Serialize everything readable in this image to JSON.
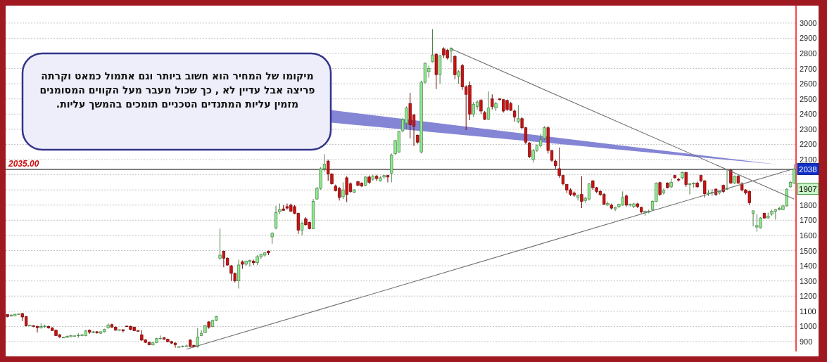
{
  "chart_data": {
    "type": "candlestick",
    "categories": [
      null,
      null,
      null,
      null,
      null,
      null,
      null,
      null,
      null,
      null,
      null,
      null,
      null,
      null,
      null,
      null,
      null,
      null,
      null,
      null,
      null,
      null,
      null,
      null,
      null,
      null,
      null,
      null,
      null,
      null,
      null,
      null,
      null,
      null,
      null,
      null,
      null,
      null,
      null,
      null,
      null,
      null,
      null,
      null,
      null,
      null,
      null,
      null,
      null,
      null,
      null,
      null,
      null,
      null,
      null,
      null,
      null,
      null,
      null,
      null,
      null,
      null,
      null,
      null,
      null,
      null,
      null,
      null,
      null,
      null,
      null,
      null,
      null,
      null,
      null,
      null,
      null,
      null,
      null,
      null,
      null,
      null,
      null,
      null,
      null,
      null,
      null,
      null,
      null,
      null,
      null,
      null,
      null,
      null,
      null,
      null,
      null,
      null,
      null,
      null,
      null,
      null,
      null,
      null,
      null,
      null,
      null,
      null,
      null,
      null,
      null,
      null,
      null,
      null,
      null,
      null,
      null,
      null,
      null,
      null,
      null,
      null,
      null,
      null,
      null,
      null,
      null,
      null,
      null,
      null,
      null,
      null,
      null,
      null,
      null,
      null,
      null,
      null,
      null,
      null,
      null,
      null,
      null,
      null,
      null,
      null,
      null,
      null,
      null,
      null,
      null,
      null,
      null,
      null,
      null,
      null,
      null,
      null,
      null,
      null,
      null,
      null,
      null,
      null,
      null,
      null,
      null,
      null,
      null,
      null,
      null,
      null,
      null,
      null,
      null,
      null,
      null,
      null,
      null,
      null,
      null,
      null,
      null,
      null,
      null,
      null,
      null,
      null,
      null,
      null,
      null,
      null,
      null,
      null,
      null,
      null,
      null,
      null,
      null,
      null,
      null,
      null,
      null,
      null,
      null,
      null,
      null,
      null,
      null,
      null,
      null,
      null
    ],
    "ohlc": [
      [
        1078,
        1080,
        1060,
        1065
      ],
      [
        1068,
        1080,
        1065,
        1075
      ],
      [
        1070,
        1085,
        1068,
        1080
      ],
      [
        1082,
        1085,
        1080,
        1082
      ],
      [
        1085,
        1090,
        1035,
        1062
      ],
      [
        1065,
        1070,
        1000,
        1005
      ],
      [
        1008,
        1010,
        1005,
        1008
      ],
      [
        1005,
        1008,
        995,
        1000
      ],
      [
        1000,
        1005,
        960,
        992
      ],
      [
        992,
        1020,
        985,
        1000
      ],
      [
        1000,
        1012,
        990,
        1002
      ],
      [
        1000,
        1005,
        985,
        990
      ],
      [
        990,
        995,
        970,
        973
      ],
      [
        975,
        980,
        938,
        940
      ],
      [
        945,
        950,
        925,
        930
      ],
      [
        928,
        932,
        925,
        928
      ],
      [
        928,
        940,
        925,
        935
      ],
      [
        932,
        945,
        930,
        940
      ],
      [
        938,
        940,
        936,
        938
      ],
      [
        940,
        955,
        925,
        942
      ],
      [
        940,
        950,
        935,
        945
      ],
      [
        940,
        978,
        935,
        970
      ],
      [
        975,
        980,
        950,
        962
      ],
      [
        960,
        970,
        955,
        965
      ],
      [
        965,
        970,
        952,
        958
      ],
      [
        955,
        968,
        950,
        965
      ],
      [
        965,
        985,
        960,
        980
      ],
      [
        990,
        1020,
        985,
        1010
      ],
      [
        1012,
        1018,
        990,
        995
      ],
      [
        995,
        1000,
        972,
        975
      ],
      [
        975,
        980,
        972,
        978
      ],
      [
        978,
        982,
        960,
        972
      ],
      [
        1002,
        1005,
        998,
        1000
      ],
      [
        1000,
        1005,
        975,
        980
      ],
      [
        995,
        998,
        970,
        972
      ],
      [
        972,
        975,
        965,
        968
      ],
      [
        945,
        975,
        905,
        910
      ],
      [
        912,
        915,
        890,
        895
      ],
      [
        895,
        900,
        875,
        880
      ],
      [
        878,
        895,
        875,
        892
      ],
      [
        893,
        925,
        890,
        920
      ],
      [
        920,
        940,
        915,
        922
      ],
      [
        925,
        930,
        912,
        915
      ],
      [
        915,
        920,
        895,
        900
      ],
      [
        900,
        905,
        885,
        890
      ],
      [
        890,
        895,
        860,
        880
      ],
      [
        866,
        870,
        862,
        866
      ],
      [
        866,
        875,
        862,
        870
      ],
      [
        872,
        880,
        868,
        872
      ],
      [
        910,
        915,
        862,
        868
      ],
      [
        875,
        880,
        860,
        865
      ],
      [
        866,
        988,
        860,
        930
      ],
      [
        940,
        975,
        935,
        955
      ],
      [
        960,
        1010,
        955,
        1005
      ],
      [
        1030,
        1035,
        985,
        995
      ],
      [
        1000,
        1045,
        995,
        1040
      ],
      [
        1040,
        1070,
        1035,
        1065
      ],
      [
        1450,
        1645,
        1440,
        1470
      ],
      [
        1495,
        1500,
        1390,
        1450
      ],
      [
        1450,
        1455,
        1400,
        1405
      ],
      [
        1400,
        1405,
        1300,
        1350
      ],
      [
        1350,
        1355,
        1290,
        1300
      ],
      [
        1300,
        1440,
        1250,
        1405
      ],
      [
        1425,
        1435,
        1380,
        1410
      ],
      [
        1410,
        1435,
        1400,
        1430
      ],
      [
        1425,
        1440,
        1395,
        1435
      ],
      [
        1430,
        1440,
        1405,
        1420
      ],
      [
        1420,
        1470,
        1405,
        1460
      ],
      [
        1460,
        1480,
        1445,
        1475
      ],
      [
        1470,
        1490,
        1460,
        1485
      ],
      [
        1495,
        1500,
        1470,
        1485
      ],
      [
        1590,
        1620,
        1545,
        1615
      ],
      [
        1650,
        1795,
        1640,
        1750
      ],
      [
        1755,
        1810,
        1740,
        1770
      ],
      [
        1775,
        1800,
        1765,
        1765
      ],
      [
        1790,
        1810,
        1770,
        1780
      ],
      [
        1800,
        1810,
        1755,
        1760
      ],
      [
        1790,
        1800,
        1740,
        1745
      ],
      [
        1745,
        1750,
        1610,
        1635
      ],
      [
        1635,
        1690,
        1600,
        1680
      ],
      [
        1710,
        1720,
        1665,
        1670
      ],
      [
        1685,
        1690,
        1640,
        1645
      ],
      [
        1645,
        1840,
        1640,
        1825
      ],
      [
        1840,
        1920,
        1835,
        1910
      ],
      [
        1910,
        2050,
        1900,
        2040
      ],
      [
        2040,
        2135,
        2020,
        2070
      ],
      [
        2090,
        2100,
        1960,
        2005
      ],
      [
        2005,
        2010,
        1935,
        1940
      ],
      [
        1925,
        1935,
        1890,
        1895
      ],
      [
        1910,
        1920,
        1830,
        1850
      ],
      [
        1855,
        1950,
        1840,
        1900
      ],
      [
        1980,
        1990,
        1820,
        1870
      ],
      [
        1940,
        1950,
        1880,
        1890
      ],
      [
        1885,
        1905,
        1880,
        1900
      ],
      [
        1955,
        1960,
        1925,
        1930
      ],
      [
        1945,
        1950,
        1920,
        1925
      ],
      [
        1930,
        1990,
        1925,
        1985
      ],
      [
        1985,
        1995,
        1940,
        1950
      ],
      [
        1970,
        2000,
        1960,
        1990
      ],
      [
        1990,
        2000,
        1960,
        1975
      ],
      [
        1960,
        1990,
        1955,
        1980
      ],
      [
        1985,
        2000,
        1975,
        1995
      ],
      [
        1995,
        2000,
        1950,
        1985
      ],
      [
        2010,
        2140,
        1950,
        2130
      ],
      [
        2140,
        2230,
        2130,
        2225
      ],
      [
        2150,
        2290,
        2145,
        2285
      ],
      [
        2290,
        2375,
        2280,
        2365
      ],
      [
        2340,
        2450,
        2300,
        2440
      ],
      [
        2470,
        2540,
        2240,
        2330
      ],
      [
        2395,
        2400,
        2190,
        2320
      ],
      [
        2260,
        2265,
        2205,
        2215
      ],
      [
        2150,
        2620,
        2140,
        2610
      ],
      [
        2610,
        2740,
        2600,
        2735
      ],
      [
        2680,
        2720,
        2640,
        2700
      ],
      [
        2745,
        2960,
        2740,
        2790
      ],
      [
        2795,
        2800,
        2565,
        2660
      ],
      [
        2660,
        2790,
        2600,
        2785
      ],
      [
        2830,
        2840,
        2770,
        2790
      ],
      [
        2820,
        2830,
        2760,
        2770
      ],
      [
        2815,
        2840,
        2740,
        2835
      ],
      [
        2780,
        2790,
        2630,
        2660
      ],
      [
        2650,
        2690,
        2600,
        2680
      ],
      [
        2720,
        2730,
        2560,
        2580
      ],
      [
        2580,
        2590,
        2295,
        2530
      ],
      [
        2590,
        2615,
        2360,
        2400
      ],
      [
        2400,
        2480,
        2380,
        2465
      ],
      [
        2450,
        2490,
        2430,
        2480
      ],
      [
        2490,
        2500,
        2400,
        2420
      ],
      [
        2410,
        2420,
        2360,
        2365
      ],
      [
        2365,
        2550,
        2360,
        2440
      ],
      [
        2500,
        2530,
        2430,
        2450
      ],
      [
        2440,
        2480,
        2420,
        2470
      ],
      [
        2500,
        2505,
        2490,
        2495
      ],
      [
        2495,
        2500,
        2410,
        2420
      ],
      [
        2490,
        2495,
        2420,
        2430
      ],
      [
        2470,
        2480,
        2420,
        2425
      ],
      [
        2420,
        2430,
        2350,
        2380
      ],
      [
        2350,
        2460,
        2340,
        2370
      ],
      [
        2370,
        2380,
        2300,
        2310
      ],
      [
        2310,
        2315,
        2200,
        2215
      ],
      [
        2210,
        2215,
        2110,
        2120
      ],
      [
        2100,
        2170,
        2080,
        2160
      ],
      [
        2160,
        2200,
        2150,
        2190
      ],
      [
        2190,
        2270,
        2180,
        2230
      ],
      [
        2240,
        2320,
        2230,
        2310
      ],
      [
        2310,
        2320,
        2140,
        2160
      ],
      [
        2160,
        2165,
        2085,
        2095
      ],
      [
        2090,
        2100,
        2040,
        2060
      ],
      [
        2040,
        2180,
        1980,
        1995
      ],
      [
        1995,
        2000,
        1930,
        1940
      ],
      [
        1935,
        1940,
        1880,
        1900
      ],
      [
        1900,
        1910,
        1860,
        1870
      ],
      [
        1880,
        1890,
        1855,
        1865
      ],
      [
        1850,
        1870,
        1830,
        1865
      ],
      [
        1870,
        1990,
        1780,
        1825
      ],
      [
        1830,
        1855,
        1815,
        1845
      ],
      [
        1840,
        1945,
        1830,
        1940
      ],
      [
        1960,
        1965,
        1900,
        1915
      ],
      [
        1915,
        1920,
        1880,
        1890
      ],
      [
        1890,
        1900,
        1860,
        1870
      ],
      [
        1870,
        1880,
        1800,
        1805
      ],
      [
        1800,
        1820,
        1795,
        1810
      ],
      [
        1800,
        1810,
        1770,
        1780
      ],
      [
        1775,
        1790,
        1760,
        1785
      ],
      [
        1790,
        1810,
        1780,
        1805
      ],
      [
        1800,
        1890,
        1795,
        1850
      ],
      [
        1860,
        1870,
        1790,
        1800
      ],
      [
        1800,
        1810,
        1790,
        1805
      ],
      [
        1790,
        1815,
        1780,
        1808
      ],
      [
        1808,
        1815,
        1780,
        1790
      ],
      [
        1785,
        1790,
        1745,
        1755
      ],
      [
        1750,
        1765,
        1730,
        1760
      ],
      [
        1755,
        1770,
        1745,
        1760
      ],
      [
        1770,
        1830,
        1765,
        1825
      ],
      [
        1825,
        1950,
        1820,
        1945
      ],
      [
        1948,
        1955,
        1860,
        1870
      ],
      [
        1880,
        1910,
        1870,
        1895
      ],
      [
        1945,
        1950,
        1910,
        1915
      ],
      [
        1920,
        1975,
        1910,
        1950
      ],
      [
        1995,
        2000,
        1975,
        1980
      ],
      [
        1970,
        1980,
        1955,
        1965
      ],
      [
        1980,
        2020,
        1970,
        2015
      ],
      [
        2015,
        2020,
        1920,
        1935
      ],
      [
        1935,
        1945,
        1870,
        1940
      ],
      [
        1940,
        1950,
        1915,
        1945
      ],
      [
        1945,
        1955,
        1915,
        1920
      ],
      [
        1995,
        2000,
        1950,
        1960
      ],
      [
        1960,
        1965,
        1850,
        1875
      ],
      [
        1875,
        1900,
        1860,
        1880
      ],
      [
        1880,
        1905,
        1860,
        1885
      ],
      [
        1905,
        1910,
        1860,
        1870
      ],
      [
        1880,
        1895,
        1870,
        1890
      ],
      [
        1930,
        1935,
        1880,
        1890
      ],
      [
        1905,
        2030,
        1900,
        1910
      ],
      [
        2030,
        2040,
        1940,
        1945
      ],
      [
        1945,
        1995,
        1940,
        1990
      ],
      [
        1990,
        2000,
        1940,
        1945
      ],
      [
        1940,
        1950,
        1890,
        1900
      ],
      [
        1900,
        1905,
        1870,
        1880
      ],
      [
        1890,
        1895,
        1800,
        1815
      ],
      [
        1745,
        1765,
        1660,
        1762
      ],
      [
        1655,
        1740,
        1625,
        1665
      ],
      [
        1650,
        1720,
        1645,
        1715
      ],
      [
        1745,
        1750,
        1710,
        1715
      ],
      [
        1715,
        1750,
        1710,
        1728
      ],
      [
        1740,
        1770,
        1730,
        1760
      ],
      [
        1760,
        1775,
        1705,
        1770
      ],
      [
        1770,
        1790,
        1765,
        1778
      ],
      [
        1770,
        1800,
        1765,
        1795
      ],
      [
        1795,
        1910,
        1790,
        1905
      ],
      [
        1920,
        1960,
        1915,
        1950
      ],
      [
        1945,
        2070,
        1940,
        2038
      ]
    ],
    "colors": [
      "#cc1111",
      "#8ee88e",
      "#8ee88e",
      "#8ee88e",
      "#cc1111",
      "#cc1111",
      "#8ee88e",
      "#cc1111",
      "#cc1111",
      "#8ee88e",
      "#8ee88e",
      "#cc1111",
      "#cc1111",
      "#cc1111",
      "#cc1111",
      "#8ee88e",
      "#8ee88e",
      "#8ee88e",
      "#8ee88e",
      "#8ee88e",
      "#8ee88e",
      "#8ee88e",
      "#cc1111",
      "#8ee88e",
      "#cc1111",
      "#8ee88e",
      "#8ee88e",
      "#8ee88e",
      "#cc1111",
      "#cc1111",
      "#8ee88e",
      "#cc1111",
      "#cc1111",
      "#cc1111",
      "#cc1111",
      "#cc1111",
      "#cc1111",
      "#cc1111",
      "#cc1111",
      "#8ee88e",
      "#8ee88e",
      "#8ee88e",
      "#cc1111",
      "#cc1111",
      "#cc1111",
      "#cc1111",
      "#8ee88e",
      "#8ee88e",
      "#8ee88e",
      "#cc1111",
      "#cc1111",
      "#8ee88e",
      "#8ee88e",
      "#8ee88e",
      "#cc1111",
      "#8ee88e",
      "#8ee88e",
      "#8ee88e",
      "#cc1111",
      "#cc1111",
      "#cc1111",
      "#cc1111",
      "#8ee88e",
      "#cc1111",
      "#8ee88e",
      "#8ee88e",
      "#cc1111",
      "#8ee88e",
      "#8ee88e",
      "#8ee88e",
      "#cc1111",
      "#8ee88e",
      "#8ee88e",
      "#8ee88e",
      "#cc1111",
      "#cc1111",
      "#cc1111",
      "#cc1111",
      "#cc1111",
      "#8ee88e",
      "#cc1111",
      "#cc1111",
      "#8ee88e",
      "#8ee88e",
      "#8ee88e",
      "#8ee88e",
      "#cc1111",
      "#cc1111",
      "#cc1111",
      "#cc1111",
      "#8ee88e",
      "#cc1111",
      "#cc1111",
      "#8ee88e",
      "#cc1111",
      "#cc1111",
      "#8ee88e",
      "#cc1111",
      "#8ee88e",
      "#cc1111",
      "#8ee88e",
      "#8ee88e",
      "#cc1111",
      "#8ee88e",
      "#8ee88e",
      "#8ee88e",
      "#8ee88e",
      "#8ee88e",
      "#cc1111",
      "#cc1111",
      "#cc1111",
      "#8ee88e",
      "#8ee88e",
      "#8ee88e",
      "#8ee88e",
      "#cc1111",
      "#8ee88e",
      "#cc1111",
      "#cc1111",
      "#8ee88e",
      "#cc1111",
      "#8ee88e",
      "#cc1111",
      "#cc1111",
      "#cc1111",
      "#8ee88e",
      "#8ee88e",
      "#cc1111",
      "#cc1111",
      "#8ee88e",
      "#cc1111",
      "#8ee88e",
      "#cc1111",
      "#cc1111",
      "#cc1111",
      "#cc1111",
      "#cc1111",
      "#8ee88e",
      "#cc1111",
      "#cc1111",
      "#cc1111",
      "#8ee88e",
      "#8ee88e",
      "#8ee88e",
      "#8ee88e",
      "#cc1111",
      "#cc1111",
      "#cc1111",
      "#cc1111",
      "#cc1111",
      "#cc1111",
      "#cc1111",
      "#cc1111",
      "#8ee88e",
      "#cc1111",
      "#8ee88e",
      "#8ee88e",
      "#cc1111",
      "#cc1111",
      "#cc1111",
      "#cc1111",
      "#8ee88e",
      "#cc1111",
      "#8ee88e",
      "#8ee88e",
      "#8ee88e",
      "#cc1111",
      "#8ee88e",
      "#8ee88e",
      "#cc1111",
      "#cc1111",
      "#8ee88e",
      "#8ee88e",
      "#8ee88e",
      "#8ee88e",
      "#cc1111",
      "#8ee88e",
      "#cc1111",
      "#8ee88e",
      "#cc1111",
      "#cc1111",
      "#8ee88e",
      "#cc1111",
      "#8ee88e",
      "#8ee88e",
      "#cc1111",
      "#cc1111",
      "#cc1111",
      "#8ee88e",
      "#8ee88e",
      "#cc1111",
      "#8ee88e",
      "#cc1111",
      "#8ee88e",
      "#cc1111",
      "#8ee88e",
      "#cc1111",
      "#cc1111",
      "#cc1111",
      "#cc1111",
      "#8ee88e",
      "#8ee88e",
      "#8ee88e",
      "#cc1111",
      "#8ee88e",
      "#8ee88e",
      "#8ee88e",
      "#8ee88e",
      "#8ee88e",
      "#8ee88e",
      "#8ee88e",
      "#8ee88e"
    ],
    "series": [
      {
        "type": "line",
        "color": "#6e6e6e",
        "values": [
          null,
          null,
          null,
          null,
          null,
          null,
          null,
          null,
          null,
          null,
          null,
          null,
          null,
          null,
          null,
          null,
          null,
          null,
          null,
          null,
          null,
          null,
          null,
          null,
          null,
          null,
          null,
          null,
          null,
          null,
          null,
          null,
          null,
          null,
          null,
          null,
          null,
          null,
          null,
          null,
          null,
          null,
          null,
          null,
          null,
          null,
          null,
          null,
          850,
          null,
          null,
          null,
          null,
          null,
          null,
          null,
          null,
          null,
          null,
          null,
          null,
          null,
          null,
          null,
          null,
          null,
          null,
          null,
          null,
          null,
          null,
          null,
          null,
          null,
          null,
          null,
          null,
          null,
          null,
          null,
          null,
          null,
          null,
          null,
          null,
          null,
          null,
          null,
          null,
          null,
          null,
          null,
          null,
          null,
          null,
          null,
          null,
          null,
          null,
          null,
          null,
          null,
          null,
          null,
          null,
          null,
          null,
          null,
          null,
          null,
          null,
          null,
          null,
          null,
          null,
          null,
          null,
          null,
          null,
          null,
          null,
          null,
          null,
          null,
          null,
          null,
          null,
          null,
          null,
          null,
          null,
          null,
          null,
          null,
          null,
          null,
          null,
          null,
          null,
          null,
          null,
          null,
          null,
          null,
          null,
          null,
          null,
          null,
          null,
          null,
          null,
          null,
          null,
          null,
          null,
          null,
          null,
          null,
          null,
          null,
          null,
          null,
          null,
          null,
          null,
          null,
          null,
          null,
          null,
          null,
          null,
          null,
          null,
          null,
          null,
          null,
          null,
          null,
          null,
          null,
          null,
          null,
          null,
          null,
          null,
          null,
          null,
          null,
          null,
          null,
          null,
          null,
          null,
          null,
          null,
          null,
          null,
          null,
          null,
          null,
          null,
          null,
          null,
          null,
          null,
          null,
          null,
          null,
          null,
          null,
          null,
          2040
        ]
      },
      {
        "type": "line",
        "color": "#6e6e6e",
        "values": [
          null,
          null,
          null,
          null,
          null,
          null,
          null,
          null,
          null,
          null,
          null,
          null,
          null,
          null,
          null,
          null,
          null,
          null,
          null,
          null,
          null,
          null,
          null,
          null,
          null,
          null,
          null,
          null,
          null,
          null,
          null,
          null,
          null,
          null,
          null,
          null,
          null,
          null,
          null,
          null,
          null,
          null,
          null,
          null,
          null,
          null,
          null,
          null,
          null,
          null,
          null,
          null,
          null,
          null,
          null,
          null,
          null,
          null,
          null,
          null,
          null,
          null,
          null,
          null,
          null,
          null,
          null,
          null,
          null,
          null,
          null,
          null,
          null,
          null,
          null,
          null,
          null,
          null,
          null,
          null,
          null,
          null,
          null,
          null,
          null,
          null,
          null,
          null,
          null,
          null,
          null,
          null,
          null,
          null,
          null,
          null,
          null,
          null,
          null,
          null,
          null,
          null,
          null,
          null,
          null,
          null,
          null,
          null,
          null,
          null,
          null,
          null,
          null,
          null,
          null,
          null,
          null,
          null,
          null,
          2830,
          null,
          null,
          null,
          null,
          null,
          null,
          null,
          null,
          null,
          null,
          null,
          null,
          null,
          null,
          null,
          null,
          null,
          null,
          null,
          null,
          null,
          null,
          null,
          null,
          null,
          null,
          null,
          null,
          null,
          null,
          null,
          null,
          null,
          null,
          null,
          null,
          null,
          null,
          null,
          null,
          null,
          null,
          null,
          null,
          null,
          null,
          null,
          null,
          null,
          null,
          null,
          null,
          null,
          null,
          null,
          null,
          null,
          null,
          null,
          null,
          null,
          null,
          null,
          null,
          null,
          null,
          null,
          null,
          null,
          null,
          null,
          null,
          null,
          null,
          null,
          null,
          null,
          null,
          null,
          null,
          null,
          null,
          null,
          null,
          null,
          null,
          null,
          null,
          null,
          null,
          null,
          1840
        ]
      }
    ],
    "ylim": [
      835,
      3115
    ],
    "yticks": [
      900,
      1000,
      1100,
      1200,
      1300,
      1400,
      1500,
      1600,
      1700,
      1800,
      {
        "value": 1900,
        "label": null
      },
      {
        "value": 2000,
        "label": null
      },
      2100,
      2200,
      2300,
      2400,
      2500,
      2600,
      2700,
      2800,
      2900,
      3000
    ],
    "tick_labels": "y",
    "grid": "y",
    "ref_lines": [
      {
        "axis": "y",
        "value": 2035,
        "label": "2035.00",
        "color": "#000000"
      }
    ],
    "annotations": [
      "מיקומו של המחיר הוא חשוב ביותר וגם אתמול כמאט וקרתה פריצה אבל עדיין לא , כך שכול מעבר מעל הקווים המסומנים מזמין עליות המתנדים הטכניים תומכים בהמשך עליות.",
      {
        "text": "2038",
        "y": 2038
      },
      {
        "text": "1907",
        "y": 1907
      }
    ]
  }
}
